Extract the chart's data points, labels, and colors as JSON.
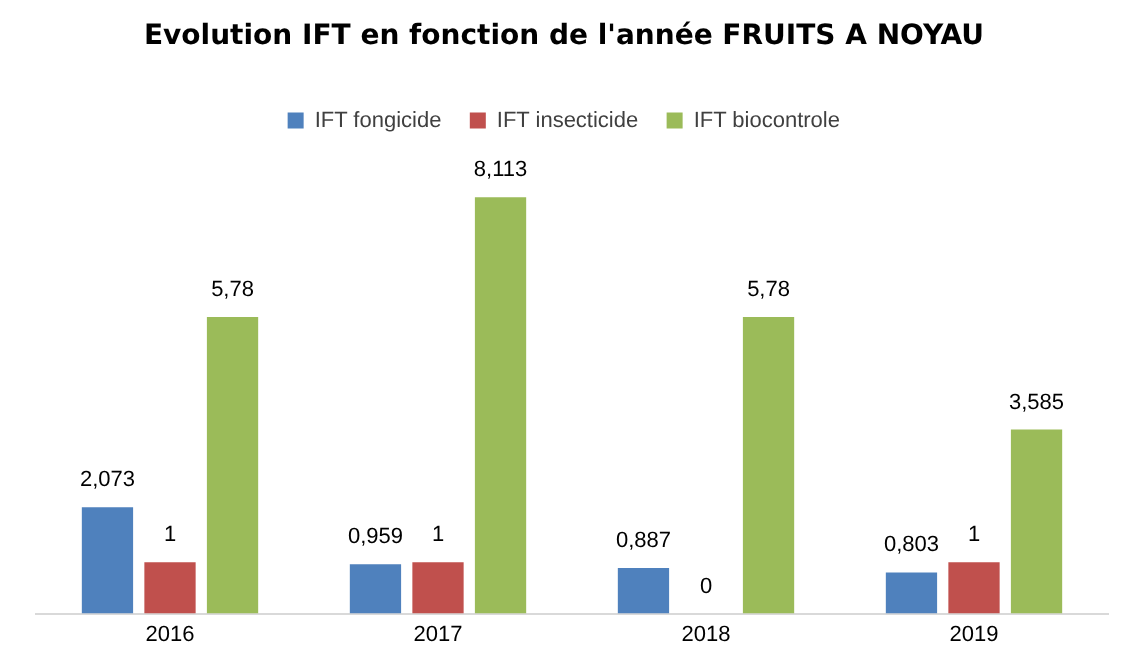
{
  "chart_data": {
    "type": "bar",
    "title": "Evolution IFT en fonction de l'année FRUITS A NOYAU",
    "categories": [
      "2016",
      "2017",
      "2018",
      "2019"
    ],
    "legend": "top",
    "grid": false,
    "series": [
      {
        "name": "IFT fongicide",
        "color": "#4f81bd",
        "values": [
          2.073,
          0.959,
          0.887,
          0.803
        ],
        "value_labels": [
          "2,073",
          "0,959",
          "0,887",
          "0,803"
        ]
      },
      {
        "name": "IFT insecticide",
        "color": "#c0504d",
        "values": [
          1,
          1,
          0,
          1
        ],
        "value_labels": [
          "1",
          "1",
          "0",
          "1"
        ]
      },
      {
        "name": "IFT biocontrole",
        "color": "#9bbb59",
        "values": [
          5.78,
          8.113,
          5.78,
          3.585
        ],
        "value_labels": [
          "5,78",
          "8,113",
          "5,78",
          "3,585"
        ]
      }
    ]
  }
}
